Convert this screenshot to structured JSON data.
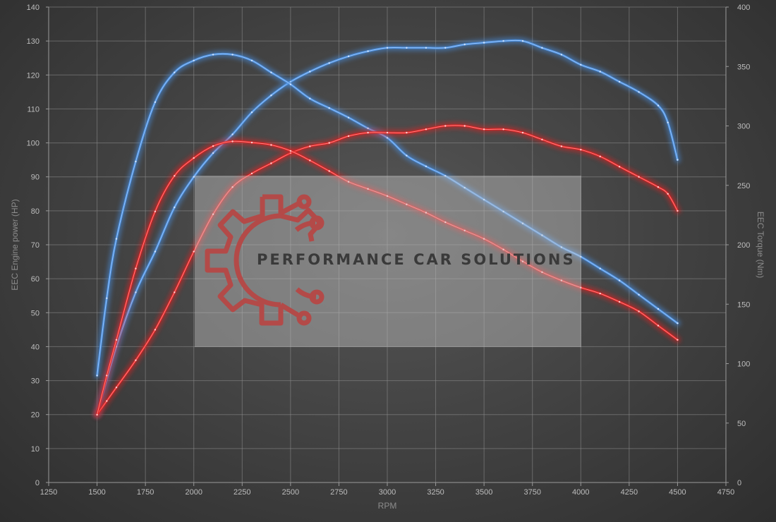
{
  "chart_data": {
    "type": "line",
    "xlabel": "RPM",
    "ylabel_left": "EEC Engine power (HP)",
    "ylabel_right": "EEC Torque (Nm)",
    "xlim": [
      1250,
      4750
    ],
    "ylim_left": [
      0,
      140
    ],
    "ylim_right": [
      0,
      400
    ],
    "xticks": [
      1250,
      1500,
      1750,
      2000,
      2250,
      2500,
      2750,
      3000,
      3250,
      3500,
      3750,
      4000,
      4250,
      4500,
      4750
    ],
    "yticks_left": [
      0,
      10,
      20,
      30,
      40,
      50,
      60,
      70,
      80,
      90,
      100,
      110,
      120,
      130,
      140
    ],
    "yticks_right": [
      0,
      50,
      100,
      150,
      200,
      250,
      300,
      350,
      400
    ],
    "grid": true,
    "series": [
      {
        "color": "#4a8fe0",
        "axis": "left",
        "x": [
          1500,
          1600,
          1700,
          1800,
          1900,
          2000,
          2100,
          2200,
          2300,
          2400,
          2500,
          2600,
          2700,
          2800,
          2900,
          3000,
          3100,
          3200,
          3300,
          3400,
          3500,
          3600,
          3700,
          3800,
          3900,
          4000,
          4100,
          4200,
          4300,
          4400,
          4450,
          4500
        ],
        "y": [
          20,
          40,
          56,
          68,
          81,
          90,
          97,
          102.5,
          109,
          114,
          118,
          121,
          123.5,
          125.5,
          127,
          128,
          128,
          128,
          128,
          129,
          129.5,
          130,
          130,
          128,
          126,
          123,
          121,
          118,
          115,
          111,
          106,
          95
        ]
      },
      {
        "color": "#4a8fe0",
        "axis": "right",
        "x": [
          1500,
          1550,
          1600,
          1700,
          1800,
          1900,
          2000,
          2100,
          2200,
          2300,
          2400,
          2500,
          2600,
          2700,
          2800,
          2900,
          3000,
          3100,
          3200,
          3300,
          3400,
          3500,
          3600,
          3700,
          3800,
          3900,
          4000,
          4100,
          4200,
          4300,
          4400,
          4500
        ],
        "y": [
          90,
          155,
          205,
          270,
          320,
          345,
          355,
          360,
          360,
          355,
          345,
          335,
          323,
          315,
          307,
          298,
          290,
          275,
          266,
          258,
          248,
          238,
          228,
          218,
          208,
          198,
          190,
          180,
          170,
          158,
          146,
          134
        ]
      },
      {
        "color": "#e02020",
        "axis": "left",
        "x": [
          1500,
          1550,
          1600,
          1700,
          1800,
          1900,
          2000,
          2100,
          2200,
          2300,
          2400,
          2500,
          2600,
          2700,
          2800,
          2900,
          3000,
          3100,
          3200,
          3300,
          3400,
          3500,
          3600,
          3700,
          3800,
          3900,
          4000,
          4100,
          4200,
          4300,
          4400,
          4450,
          4500
        ],
        "y": [
          20,
          24,
          28,
          36,
          45,
          56,
          68,
          79,
          87,
          91,
          94,
          97,
          99,
          100,
          102,
          103,
          103,
          103,
          104,
          105,
          105,
          104,
          104,
          103,
          101,
          99,
          98,
          96,
          93,
          90,
          87,
          85,
          80
        ]
      },
      {
        "color": "#e02020",
        "axis": "right",
        "x": [
          1500,
          1550,
          1600,
          1700,
          1800,
          1900,
          2000,
          2100,
          2200,
          2300,
          2400,
          2500,
          2600,
          2700,
          2800,
          2900,
          3000,
          3100,
          3200,
          3300,
          3400,
          3500,
          3600,
          3700,
          3800,
          3900,
          4000,
          4100,
          4200,
          4300,
          4400,
          4500
        ],
        "y": [
          57,
          90,
          120,
          180,
          228,
          258,
          273,
          283,
          287,
          286,
          284,
          279,
          271,
          262,
          253,
          247,
          241,
          234,
          227,
          219,
          212,
          205,
          196,
          186,
          177,
          170,
          164,
          159,
          152,
          144,
          132,
          120
        ]
      }
    ]
  },
  "watermark": {
    "brand": "PERFORMANCE CAR SOLUTIONS",
    "logo_color": "#b34a48"
  }
}
